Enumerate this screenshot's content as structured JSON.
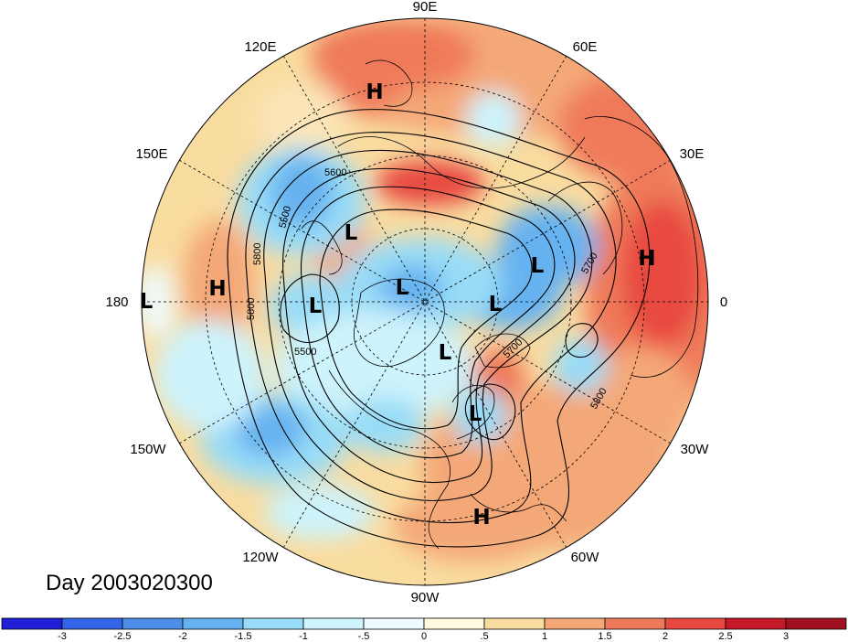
{
  "map": {
    "projection": "north-polar-stereographic",
    "center_lon_label": "90W",
    "longitude_labels": [
      "90E",
      "120E",
      "60E",
      "150E",
      "30E",
      "180",
      "0",
      "150W",
      "30W",
      "120W",
      "60W",
      "90W"
    ],
    "pressure_centers": [
      {
        "type": "H",
        "region": "east-siberia"
      },
      {
        "type": "L",
        "region": "bering-sea"
      },
      {
        "type": "L",
        "region": "kara-sea"
      },
      {
        "type": "H",
        "region": "north-pacific"
      },
      {
        "type": "L",
        "region": "dateline"
      },
      {
        "type": "L",
        "region": "east-siberian-sea"
      },
      {
        "type": "L",
        "region": "arctic-ocean"
      },
      {
        "type": "L",
        "region": "barents-sea"
      },
      {
        "type": "H",
        "region": "west-africa-sahara"
      },
      {
        "type": "L",
        "region": "canadian-arctic"
      },
      {
        "type": "L",
        "region": "newfoundland"
      },
      {
        "type": "H",
        "region": "caribbean"
      }
    ],
    "contour_labels": [
      "5600",
      "5500",
      "5800",
      "5800",
      "5500",
      "5700",
      "5700",
      "5800"
    ],
    "contour_levels": [
      5500,
      5600,
      5700,
      5800
    ],
    "day_label": "Day 2003020300"
  },
  "colorbar": {
    "tick_labels": [
      "-3",
      "-2.5",
      "-2",
      "-1.5",
      "-1",
      "-.5",
      "0",
      ".5",
      "1",
      "1.5",
      "2",
      "2.5",
      "3"
    ],
    "colors": [
      "#1f1fd6",
      "#3366e6",
      "#4d8fe8",
      "#66b2f0",
      "#99dcf7",
      "#cdf3fc",
      "#eefbfe",
      "#fffbe0",
      "#f9dca0",
      "#f4a878",
      "#ef7a5a",
      "#e84840",
      "#c41a28",
      "#a01020"
    ]
  }
}
